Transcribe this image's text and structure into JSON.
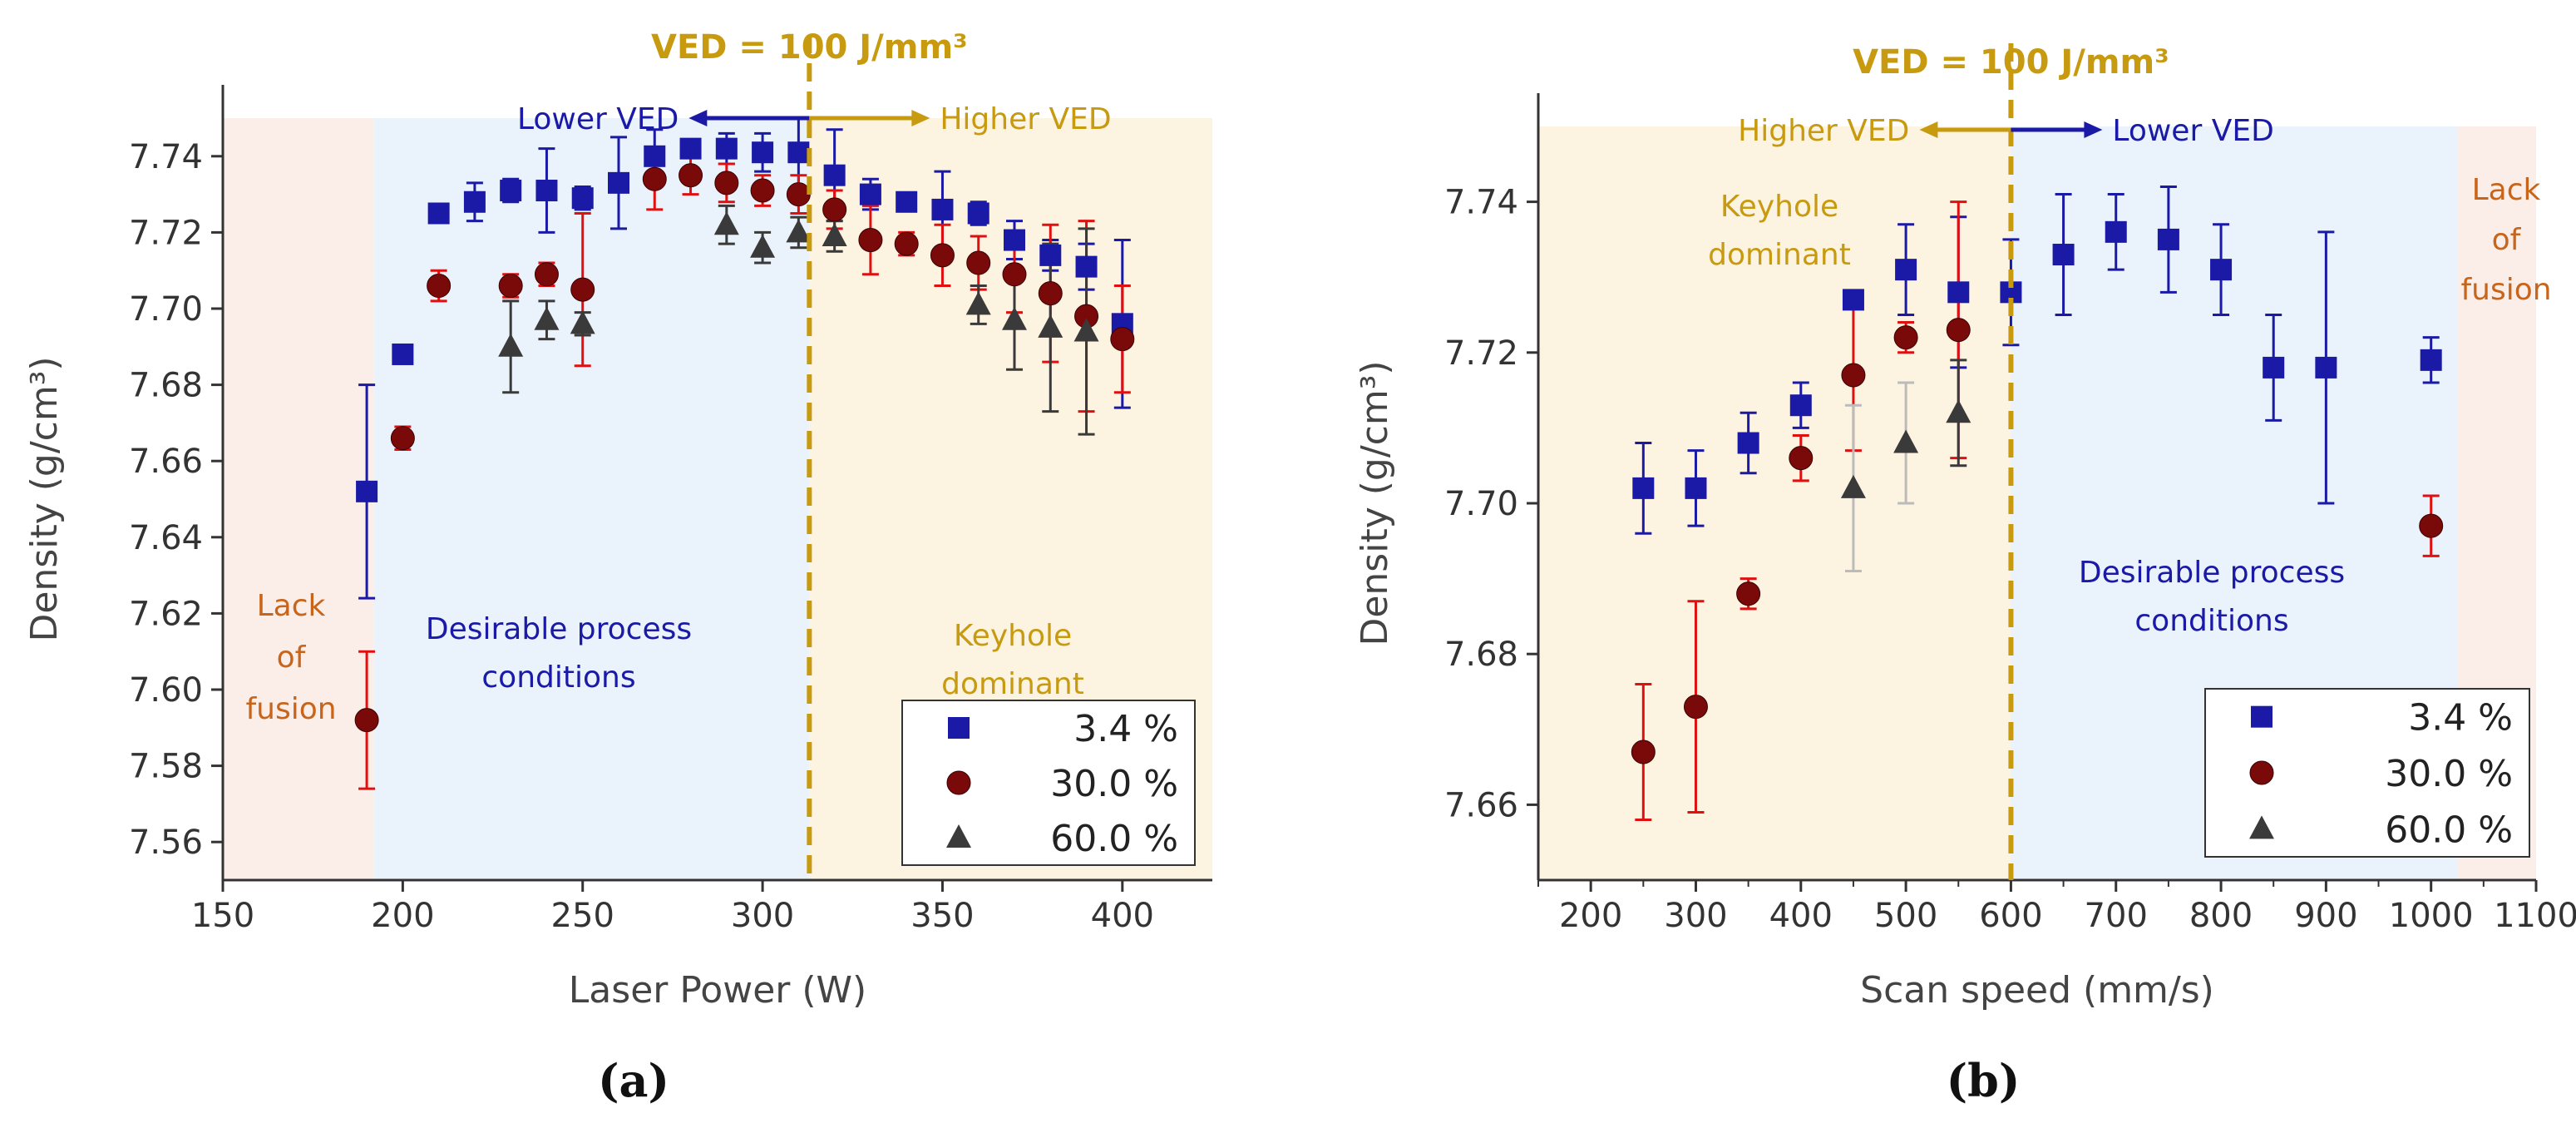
{
  "colors": {
    "series_3_4": "#1a1aa6",
    "series_30": "#7a0a0a",
    "series_30_err": "#e01010",
    "series_60": "#3a3a3a",
    "series_60_err_b": "#bbbbbb",
    "ved_line": "#c79a10",
    "zone_lack": "#fbeee8",
    "zone_desirable": "#eaf2fb",
    "zone_keyhole": "#fdf3e1",
    "text_lack": "#c8651a",
    "text_desirable": "#1a1aa6",
    "text_keyhole": "#c79a10"
  },
  "chart_data": [
    {
      "type": "scatter",
      "caption": "(a)",
      "xlabel": "Laser Power (W)",
      "ylabel": "Density (g/cm³)",
      "xlim": [
        150,
        425
      ],
      "ylim": [
        7.55,
        7.75
      ],
      "xticks": [
        "150",
        "200",
        "250",
        "300",
        "350",
        "400"
      ],
      "yticks": [
        "7.56",
        "7.58",
        "7.60",
        "7.62",
        "7.64",
        "7.66",
        "7.68",
        "7.70",
        "7.72",
        "7.74"
      ],
      "ved_label": "VED = 100 J/mm³",
      "ved_x": 313,
      "arrow_left_label": "Lower VED",
      "arrow_right_label": "Higher VED",
      "zones": [
        {
          "key": "lack",
          "x0": 150,
          "x1": 192,
          "label_lines": [
            "Lack",
            "of",
            "fusion"
          ]
        },
        {
          "key": "desirable",
          "x0": 192,
          "x1": 313,
          "label_lines": [
            "Desirable process",
            "conditions"
          ]
        },
        {
          "key": "keyhole",
          "x0": 313,
          "x1": 425,
          "label_lines": [
            "Keyhole",
            "dominant"
          ]
        }
      ],
      "legend": [
        "3.4 %",
        "30.0 %",
        "60.0 %"
      ],
      "series": [
        {
          "name": "3.4 %",
          "marker": "square",
          "x": [
            190,
            200,
            210,
            220,
            230,
            240,
            250,
            260,
            270,
            280,
            290,
            300,
            310,
            320,
            330,
            340,
            350,
            360,
            370,
            380,
            390,
            400
          ],
          "y": [
            7.652,
            7.688,
            7.725,
            7.728,
            7.731,
            7.731,
            7.729,
            7.733,
            7.74,
            7.742,
            7.742,
            7.741,
            7.741,
            7.735,
            7.73,
            7.728,
            7.726,
            7.725,
            7.718,
            7.714,
            7.711,
            7.696
          ],
          "err": [
            0.028,
            0.002,
            0.002,
            0.005,
            0.003,
            0.011,
            0.003,
            0.012,
            0.007,
            0.002,
            0.004,
            0.005,
            0.009,
            0.012,
            0.004,
            0.002,
            0.01,
            0.003,
            0.005,
            0.004,
            0.006,
            0.022
          ]
        },
        {
          "name": "30.0 %",
          "marker": "circle",
          "x": [
            190,
            200,
            210,
            230,
            240,
            250,
            270,
            280,
            290,
            300,
            310,
            320,
            330,
            340,
            350,
            360,
            370,
            380,
            390,
            400
          ],
          "y": [
            7.592,
            7.666,
            7.706,
            7.706,
            7.709,
            7.705,
            7.734,
            7.735,
            7.733,
            7.731,
            7.73,
            7.726,
            7.718,
            7.717,
            7.714,
            7.712,
            7.709,
            7.704,
            7.698,
            7.692
          ],
          "err": [
            0.018,
            0.003,
            0.004,
            0.003,
            0.003,
            0.02,
            0.008,
            0.005,
            0.005,
            0.004,
            0.005,
            0.005,
            0.009,
            0.003,
            0.008,
            0.007,
            0.01,
            0.018,
            0.025,
            0.014
          ]
        },
        {
          "name": "60.0 %",
          "marker": "triangle",
          "x": [
            230,
            240,
            250,
            290,
            300,
            310,
            320,
            360,
            370,
            380,
            390
          ],
          "y": [
            7.69,
            7.697,
            7.696,
            7.722,
            7.716,
            7.72,
            7.719,
            7.701,
            7.697,
            7.695,
            7.694
          ],
          "err": [
            0.012,
            0.005,
            0.003,
            0.005,
            0.004,
            0.004,
            0.004,
            0.005,
            0.013,
            0.022,
            0.027
          ]
        }
      ]
    },
    {
      "type": "scatter",
      "caption": "(b)",
      "xlabel": "Scan speed (mm/s)",
      "ylabel": "Density (g/cm³)",
      "xlim": [
        150,
        1100
      ],
      "ylim": [
        7.65,
        7.75
      ],
      "xticks": [
        "200",
        "300",
        "400",
        "500",
        "600",
        "700",
        "800",
        "900",
        "1000",
        "1100"
      ],
      "yticks": [
        "7.66",
        "7.68",
        "7.70",
        "7.72",
        "7.74"
      ],
      "ved_label": "VED = 100 J/mm³",
      "ved_x": 600,
      "arrow_left_label": "Higher VED",
      "arrow_right_label": "Lower VED",
      "zones": [
        {
          "key": "keyhole",
          "x0": 150,
          "x1": 600,
          "label_lines": [
            "Keyhole",
            "dominant"
          ]
        },
        {
          "key": "desirable",
          "x0": 600,
          "x1": 1025,
          "label_lines": [
            "Desirable process",
            "conditions"
          ]
        },
        {
          "key": "lack",
          "x0": 1025,
          "x1": 1100,
          "label_lines": [
            "Lack",
            "of",
            "fusion"
          ]
        }
      ],
      "legend": [
        "3.4 %",
        "30.0 %",
        "60.0 %"
      ],
      "series": [
        {
          "name": "3.4 %",
          "marker": "square",
          "x": [
            250,
            300,
            350,
            400,
            450,
            500,
            550,
            600,
            650,
            700,
            750,
            800,
            850,
            900,
            1000
          ],
          "y": [
            7.702,
            7.702,
            7.708,
            7.713,
            7.727,
            7.731,
            7.728,
            7.728,
            7.733,
            7.736,
            7.735,
            7.731,
            7.718,
            7.718,
            7.719
          ],
          "err": [
            0.006,
            0.005,
            0.004,
            0.003,
            0.001,
            0.006,
            0.01,
            0.007,
            0.008,
            0.005,
            0.007,
            0.006,
            0.007,
            0.018,
            0.003
          ]
        },
        {
          "name": "30.0 %",
          "marker": "circle",
          "x": [
            250,
            300,
            350,
            400,
            450,
            500,
            550,
            1000
          ],
          "y": [
            7.667,
            7.673,
            7.688,
            7.706,
            7.717,
            7.722,
            7.723,
            7.697
          ],
          "err": [
            0.009,
            0.014,
            0.002,
            0.003,
            0.01,
            0.002,
            0.017,
            0.004
          ]
        },
        {
          "name": "60.0 %",
          "marker": "triangle",
          "x": [
            450,
            500,
            550
          ],
          "y": [
            7.702,
            7.708,
            7.712
          ],
          "err": [
            0.011,
            0.008,
            0.007
          ]
        }
      ]
    }
  ]
}
